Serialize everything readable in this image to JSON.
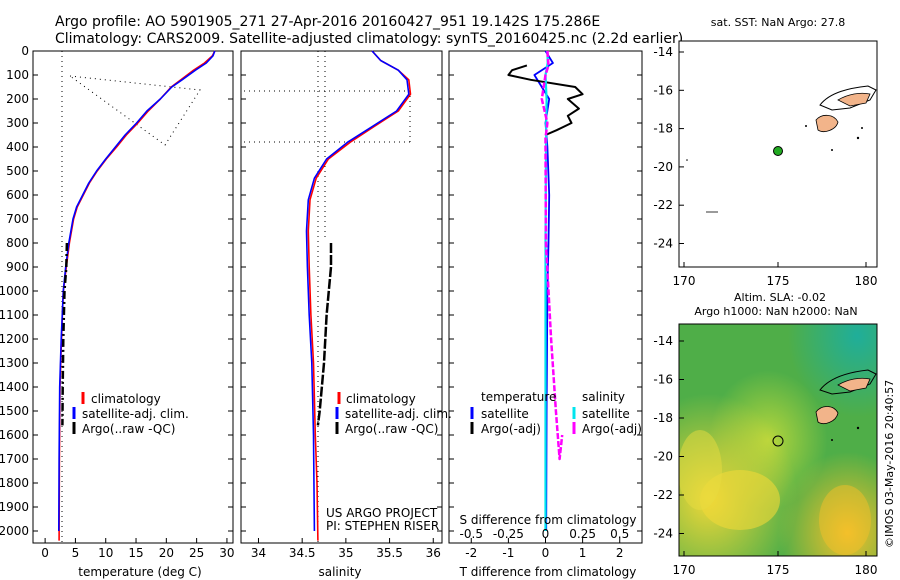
{
  "header": {
    "line1": "Argo profile: AO 5901905_271 27-Apr-2016 20160427_951 19.142S 175.286E",
    "line2": "Climatology: CARS2009. Satellite-adjusted climatology: synTS_20160425.nc (2.2d earlier)"
  },
  "colors": {
    "climatology": "#ff0000",
    "satellite": "#0000ff",
    "argo": "#000000",
    "sal_satellite": "#00e5ee",
    "sal_argo": "#ff00ff",
    "land": "#f2b48a",
    "float_marker": "#22aa22",
    "sla_low": "#1f9e6a",
    "sla_mid": "#7ec43c",
    "sla_high": "#f0d838"
  },
  "depth_axis": {
    "ticks": [
      "0",
      "100",
      "200",
      "300",
      "400",
      "500",
      "600",
      "700",
      "800",
      "900",
      "1000",
      "1100",
      "1200",
      "1300",
      "1400",
      "1500",
      "1600",
      "1700",
      "1800",
      "1900",
      "2000"
    ]
  },
  "panel_temp": {
    "xlabel": "temperature (deg C)",
    "xticks": [
      "0",
      "5",
      "10",
      "15",
      "20",
      "25",
      "30"
    ],
    "legend": [
      "climatology",
      "satellite-adj. clim.",
      "Argo(..raw -QC)"
    ]
  },
  "panel_sal": {
    "xlabel": "salinity",
    "xticks": [
      "34",
      "34.5",
      "35",
      "35.5",
      "36"
    ],
    "legend": [
      "climatology",
      "satellite-adj. clim.",
      "Argo(..raw -QC)"
    ],
    "credit1": "US ARGO PROJECT",
    "credit2": "PI: STEPHEN RISER"
  },
  "panel_diff": {
    "top_label": "S difference from climatology",
    "top_ticks": [
      "-0.5",
      "-0.25",
      "0",
      "0.25",
      "0.5"
    ],
    "xlabel": "T difference from climatology",
    "xticks": [
      "-2",
      "-1",
      "0",
      "1",
      "2"
    ],
    "legend_t_title": "temperature",
    "legend_s_title": "salinity",
    "legend": [
      "satellite",
      "Argo(-adj)",
      "satellite",
      "Argo(-adj)"
    ]
  },
  "map_sst": {
    "title": "sat. SST: NaN Argo: 27.8",
    "yticks": [
      "-14",
      "-16",
      "-18",
      "-20",
      "-22",
      "-24"
    ],
    "xticks": [
      "170",
      "175",
      "180"
    ]
  },
  "map_sla": {
    "title1": "Altim. SLA: -0.02",
    "title2": "Argo h1000: NaN h2000: NaN",
    "yticks": [
      "-14",
      "-16",
      "-18",
      "-20",
      "-22",
      "-24"
    ],
    "xticks": [
      "170",
      "175",
      "180"
    ]
  },
  "credit_vertical": "©IMOS 03-May-2016 20:40:57",
  "chart_data": [
    {
      "type": "line",
      "name": "temperature profile",
      "xlabel": "temperature (deg C)",
      "ylabel": "",
      "xlim": [
        -2,
        31
      ],
      "ylim": [
        2050,
        0
      ],
      "series": [
        {
          "name": "climatology",
          "x": [
            28.0,
            27.6,
            26.3,
            24.5,
            22.4,
            20.8,
            19.0,
            17.0,
            15.3,
            13.4,
            11.8,
            10.1,
            8.6,
            7.3,
            6.3,
            5.3,
            4.7,
            4.0,
            3.5,
            3.0,
            2.7,
            2.45,
            2.35,
            2.3
          ],
          "y": [
            0,
            20,
            50,
            80,
            120,
            150,
            200,
            250,
            300,
            350,
            400,
            450,
            500,
            550,
            600,
            650,
            700,
            800,
            900,
            1000,
            1200,
            1400,
            1700,
            2040
          ]
        },
        {
          "name": "satellite-adj. clim.",
          "x": [
            28.0,
            27.7,
            26.6,
            24.8,
            22.6,
            20.9,
            19.0,
            16.8,
            15.1,
            13.2,
            11.6,
            10.0,
            8.5,
            7.2,
            6.2,
            5.2,
            4.6,
            3.9,
            3.4,
            3.0,
            2.65,
            2.4,
            2.3,
            2.25
          ],
          "y": [
            0,
            20,
            50,
            80,
            120,
            150,
            200,
            250,
            300,
            350,
            400,
            450,
            500,
            550,
            600,
            650,
            700,
            800,
            900,
            1000,
            1200,
            1400,
            1700,
            2000
          ]
        },
        {
          "name": "Argo(..raw -QC)",
          "x": [
            3.6,
            3.5,
            3.2,
            3.1,
            3.0,
            2.9,
            2.85
          ],
          "y": [
            800,
            900,
            1000,
            1100,
            1200,
            1400,
            1560
          ]
        }
      ]
    },
    {
      "type": "line",
      "name": "salinity profile",
      "xlabel": "salinity",
      "xlim": [
        33.8,
        36.1
      ],
      "ylim": [
        2050,
        0
      ],
      "series": [
        {
          "name": "climatology",
          "x": [
            35.3,
            35.4,
            35.6,
            35.72,
            35.74,
            35.6,
            35.3,
            35.05,
            34.8,
            34.66,
            34.59,
            34.57,
            34.58,
            34.6,
            34.63,
            34.65,
            34.67,
            34.68
          ],
          "y": [
            0,
            40,
            80,
            120,
            180,
            250,
            320,
            380,
            450,
            530,
            620,
            750,
            900,
            1100,
            1300,
            1600,
            1800,
            2040
          ]
        },
        {
          "name": "satellite-adj. clim.",
          "x": [
            35.3,
            35.4,
            35.6,
            35.7,
            35.72,
            35.58,
            35.28,
            35.02,
            34.78,
            34.64,
            34.57,
            34.55,
            34.56,
            34.58,
            34.61,
            34.63,
            34.64
          ],
          "y": [
            0,
            40,
            80,
            120,
            180,
            250,
            320,
            380,
            450,
            530,
            620,
            750,
            900,
            1100,
            1300,
            1600,
            2000
          ]
        },
        {
          "name": "Argo(..raw -QC)",
          "x": [
            34.83,
            34.83,
            34.78,
            34.75,
            34.7,
            34.68
          ],
          "y": [
            800,
            900,
            1100,
            1300,
            1500,
            1560
          ]
        }
      ]
    },
    {
      "type": "line",
      "name": "difference from climatology",
      "xlabel": "T difference from climatology",
      "x2label": "S difference from climatology",
      "xlim": [
        -2.6,
        2.6
      ],
      "ylim": [
        2050,
        0
      ],
      "series": [
        {
          "name": "temperature satellite",
          "x": [
            0.0,
            0.2,
            -0.3,
            -0.1,
            0.1,
            0.0,
            0.05,
            0.1,
            0.08,
            0.05,
            0.03,
            0.02
          ],
          "y": [
            0,
            50,
            100,
            150,
            200,
            300,
            400,
            600,
            800,
            1000,
            1500,
            2000
          ]
        },
        {
          "name": "temperature Argo(-adj)",
          "x": [
            -0.5,
            -0.9,
            -1.0,
            -0.4,
            0.8,
            1.0,
            0.6,
            0.9,
            0.6,
            0.7,
            0.3,
            0.0
          ],
          "y": [
            60,
            80,
            100,
            120,
            150,
            180,
            200,
            240,
            270,
            300,
            330,
            350
          ]
        },
        {
          "name": "salinity satellite",
          "x": [
            0.05,
            0.06,
            0.0,
            0.03,
            0.02,
            0.01,
            0.0,
            0.0,
            0.0
          ],
          "y": [
            0,
            50,
            100,
            200,
            300,
            500,
            800,
            1200,
            2000
          ]
        },
        {
          "name": "salinity Argo(-adj)",
          "x": [
            0.05,
            0.08,
            0.0,
            -0.1,
            0.05,
            0.02,
            0.0,
            0.01,
            0.15,
            0.28,
            0.38,
            0.45
          ],
          "y": [
            0,
            60,
            100,
            200,
            300,
            340,
            360,
            800,
            1200,
            1500,
            1700,
            1600
          ]
        }
      ]
    }
  ]
}
